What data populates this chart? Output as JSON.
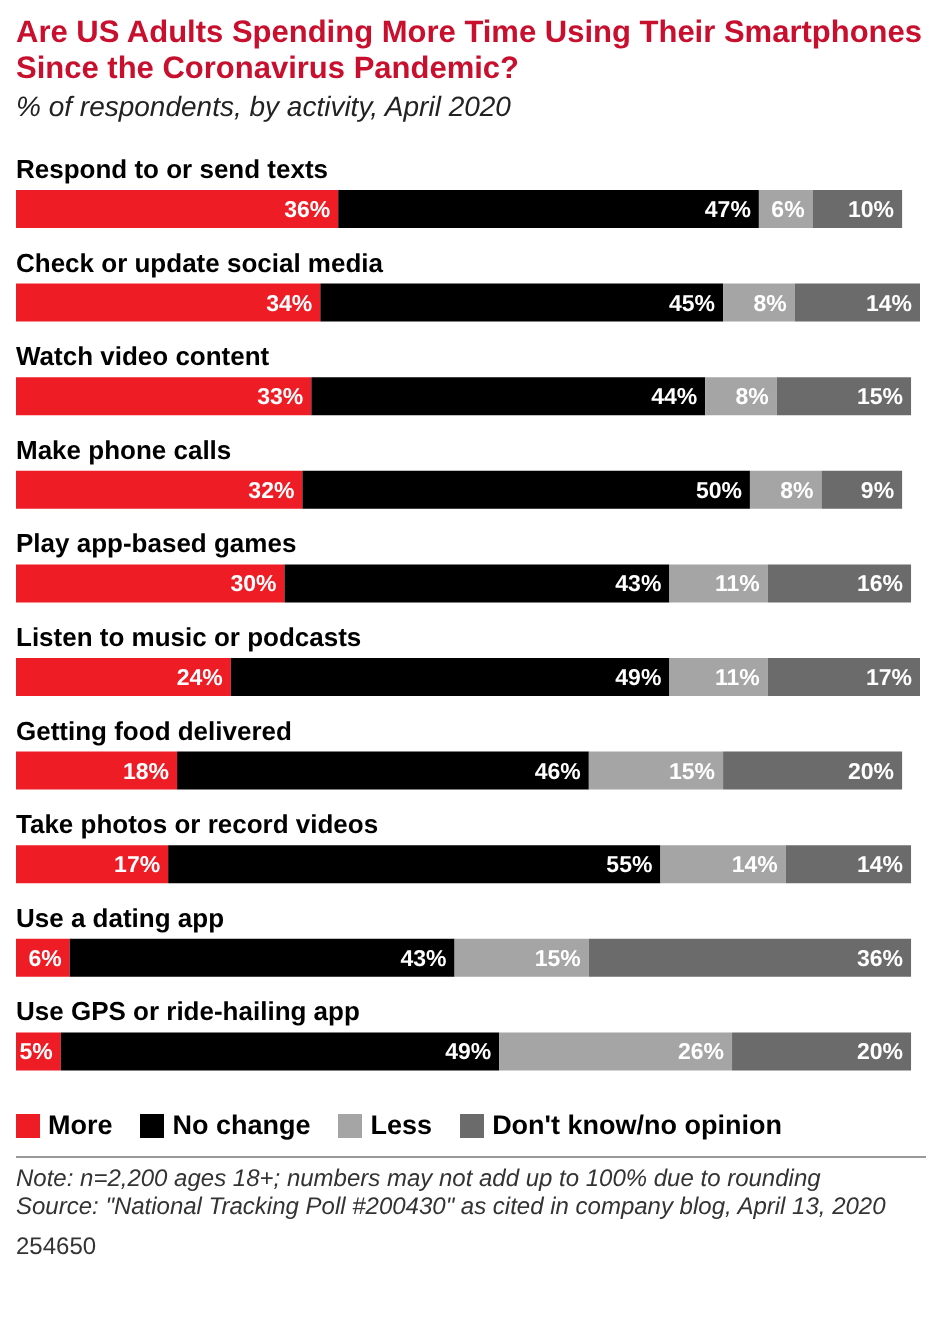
{
  "chart_data": {
    "type": "bar",
    "orientation": "horizontal",
    "stacked": true,
    "title": "Are US Adults Spending More Time Using Their Smartphones Since the Coronavirus Pandemic?",
    "subtitle": "% of respondents, by activity, April 2020",
    "categories": [
      "Respond to or send texts",
      "Check or update social media",
      "Watch video content",
      "Make phone calls",
      "Play app-based games",
      "Listen to music or podcasts",
      "Getting food delivered",
      "Take photos or record videos",
      "Use a dating app",
      "Use GPS or ride-hailing app"
    ],
    "series": [
      {
        "name": "More",
        "color": "#ee1c25",
        "values": [
          36,
          34,
          33,
          32,
          30,
          24,
          18,
          17,
          6,
          5
        ],
        "value_labels": [
          "36%",
          "34%",
          "33%",
          "32%",
          "30%",
          "24%",
          "18%",
          "17%",
          "6%",
          "5%"
        ]
      },
      {
        "name": "No change",
        "color": "#000000",
        "values": [
          47,
          45,
          44,
          50,
          43,
          49,
          46,
          55,
          43,
          49
        ],
        "value_labels": [
          "47%",
          "45%",
          "44%",
          "50%",
          "43%",
          "49%",
          "46%",
          "55%",
          "43%",
          "49%"
        ]
      },
      {
        "name": "Less",
        "color": "#a5a5a5",
        "values": [
          6,
          8,
          8,
          8,
          11,
          11,
          15,
          14,
          15,
          26
        ],
        "value_labels": [
          "6%",
          "8%",
          "8%",
          "8%",
          "11%",
          "11%",
          "15%",
          "14%",
          "15%",
          "26%"
        ]
      },
      {
        "name": "Don't know/no opinion",
        "color": "#6b6b6b",
        "values": [
          10,
          14,
          15,
          9,
          16,
          17,
          20,
          14,
          36,
          20
        ],
        "value_labels": [
          "10%",
          "14%",
          "15%",
          "9%",
          "16%",
          "17%",
          "20%",
          "14%",
          "36%",
          "20%"
        ]
      }
    ],
    "xlim": [
      0,
      101
    ],
    "tick_labels": "y",
    "legend": "bottom",
    "grid": false,
    "annotations": [
      "Note: n=2,200 ages 18+; numbers may not add up to 100% due to rounding",
      "Source: \"National Tracking Poll #200430\" as cited in company blog, April 13, 2020",
      "254650"
    ]
  }
}
